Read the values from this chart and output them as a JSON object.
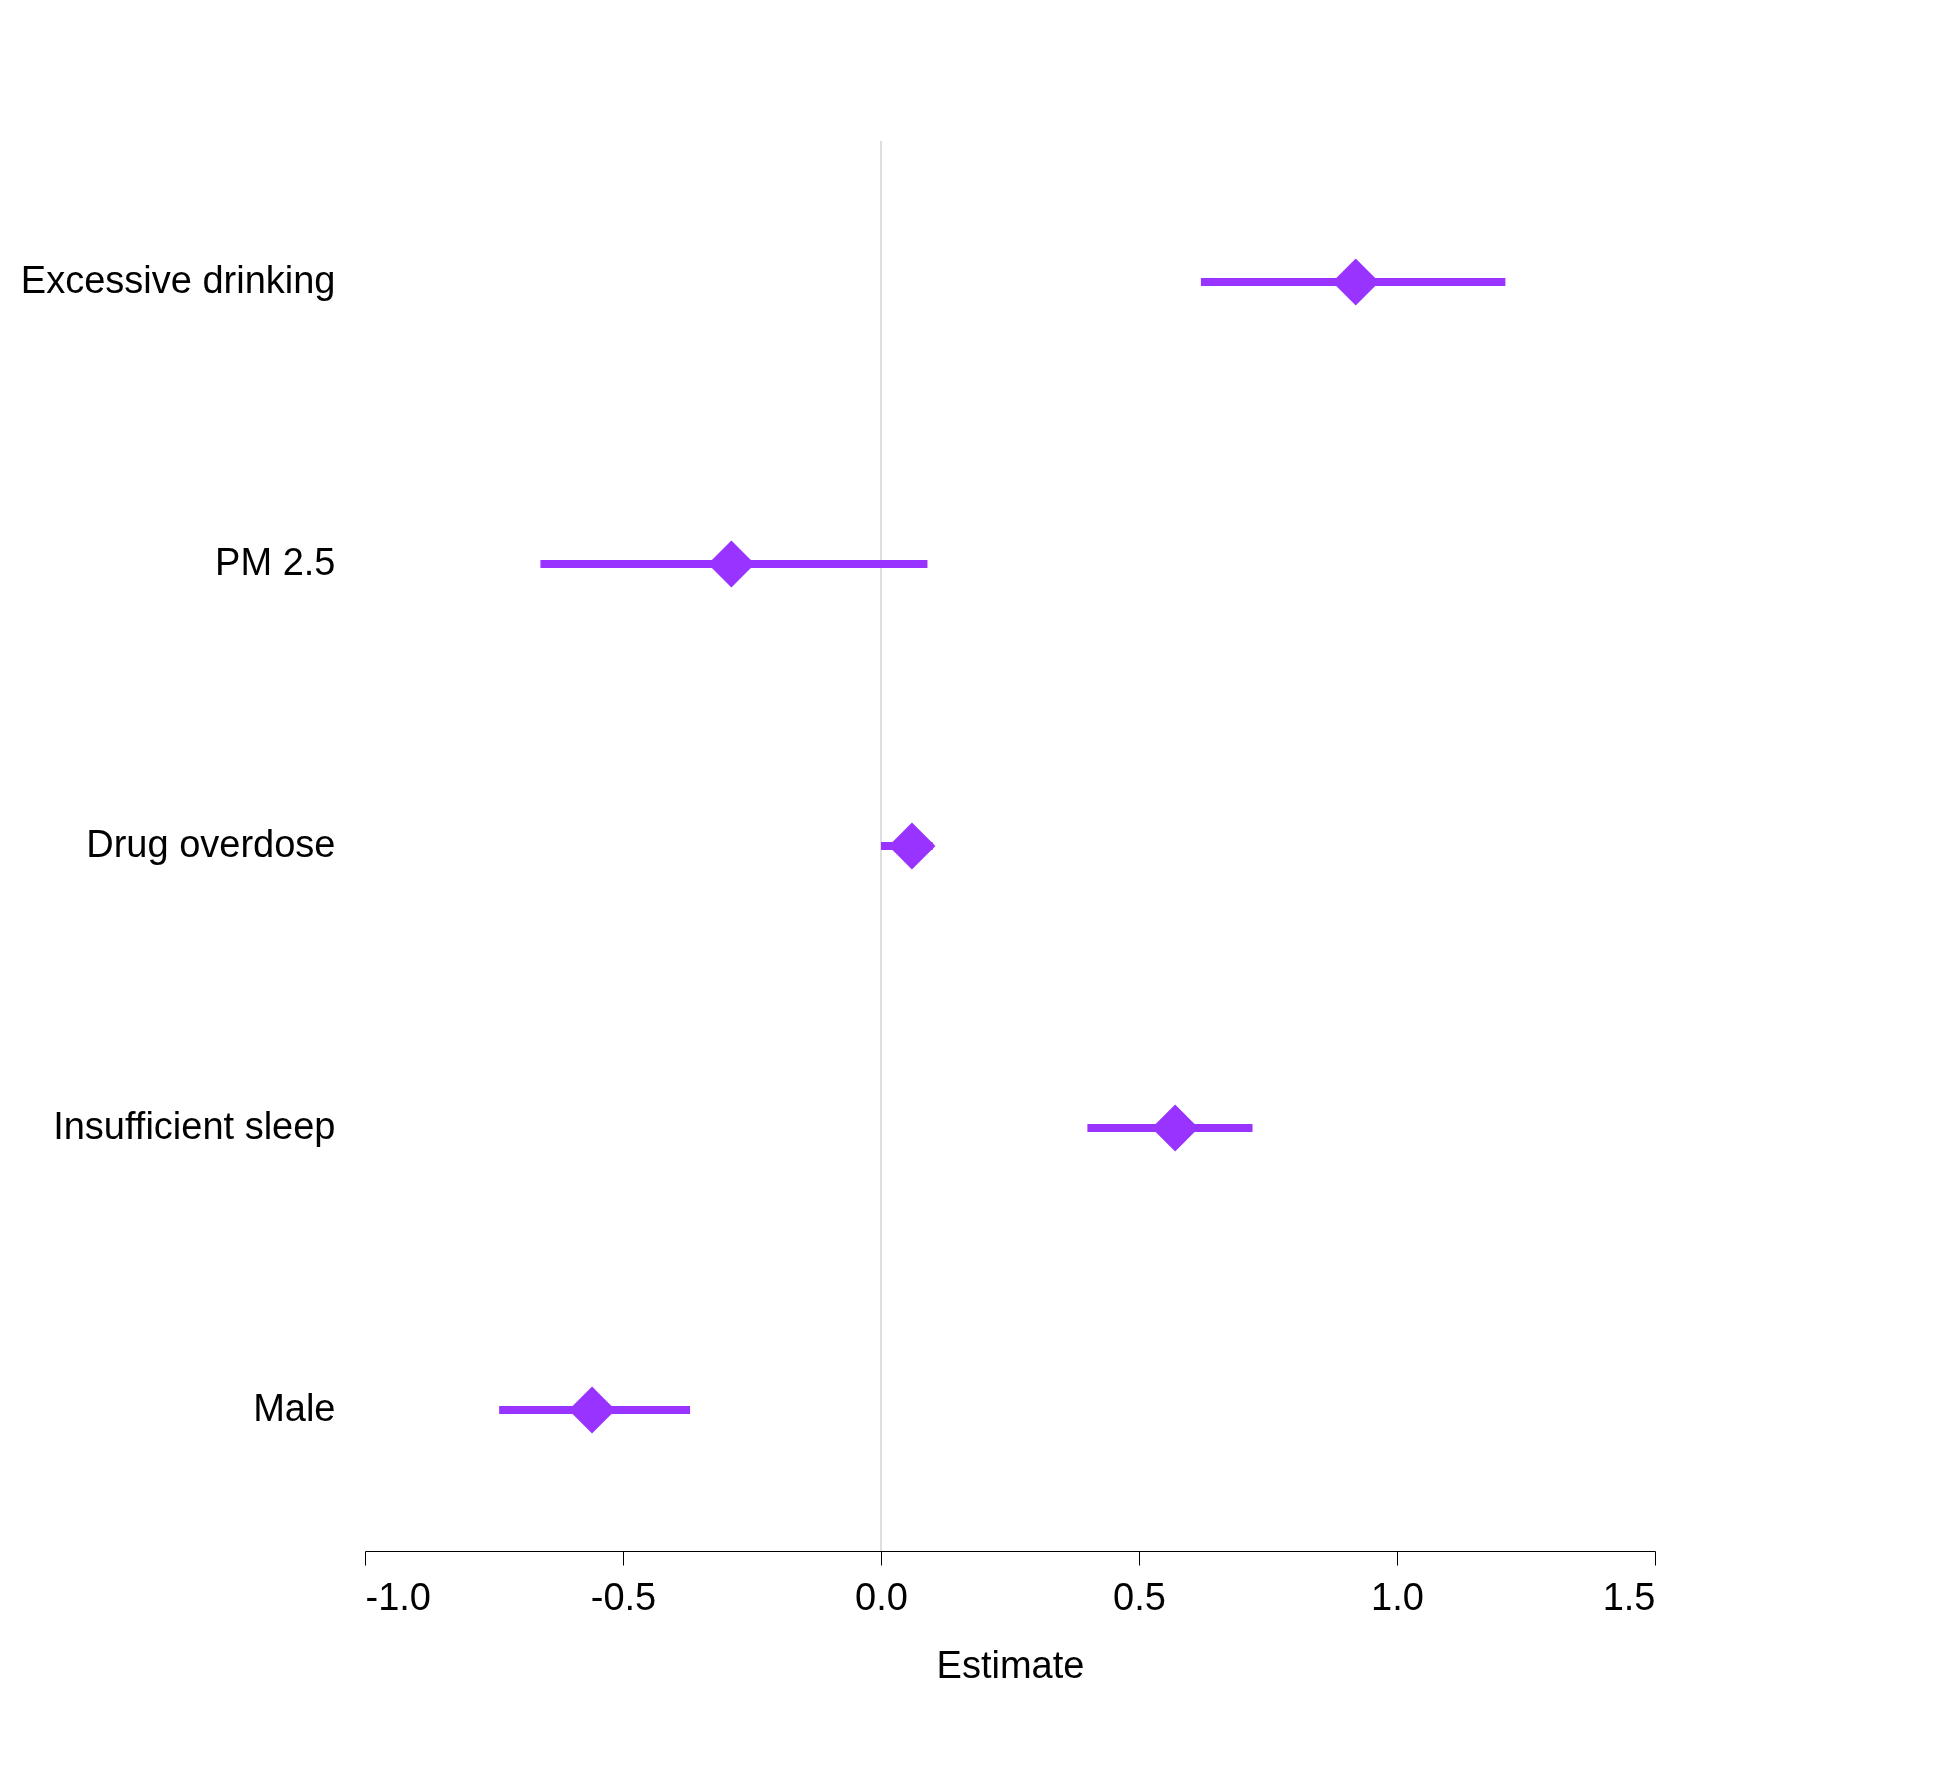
{
  "chart_data": {
    "type": "scatter",
    "orientation": "horizontal",
    "xlabel": "Estimate",
    "categories": [
      "Excessive drinking",
      "PM 2.5",
      "Drug overdose",
      "Insufficient sleep",
      "Male"
    ],
    "series": [
      {
        "color": "#9933ff",
        "values": [
          0.92,
          -0.29,
          0.06,
          0.57,
          -0.56
        ],
        "errors": [
          [
            0.62,
            1.21
          ],
          [
            -0.66,
            0.09
          ],
          [
            0.0,
            0.1
          ],
          [
            0.4,
            0.72
          ],
          [
            -0.74,
            -0.37
          ]
        ]
      }
    ],
    "xlim": [
      -1.0,
      1.5
    ],
    "xticks": [
      {
        "value": -1.0,
        "label": "-1.0"
      },
      {
        "value": -0.5,
        "label": "-0.5"
      },
      {
        "value": 0.0,
        "label": "0.0"
      },
      {
        "value": 0.5,
        "label": "0.5"
      },
      {
        "value": 1.0,
        "label": "1.0"
      },
      {
        "value": 1.5,
        "label": "1.5"
      }
    ],
    "ref_lines": [
      {
        "axis": "x",
        "value": 0,
        "color": "#d3d3d3"
      }
    ],
    "marker": "diamond",
    "grid": false
  }
}
